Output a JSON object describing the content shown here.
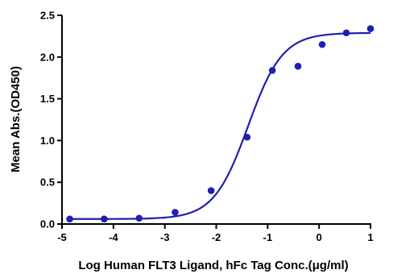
{
  "chart_data": {
    "type": "scatter",
    "xlabel": "Log Human FLT3 Ligand, hFc Tag Conc.(μg/ml)",
    "ylabel": "Mean Abs.(OD450)",
    "xlim": [
      -5,
      1
    ],
    "ylim": [
      0,
      2.5
    ],
    "xticks": [
      -5,
      -4,
      -3,
      -2,
      -1,
      0,
      1
    ],
    "yticks": [
      0.0,
      0.5,
      1.0,
      1.5,
      2.0,
      2.5
    ],
    "xtick_labels": [
      "-5",
      "-4",
      "-3",
      "-2",
      "-1",
      "0",
      "1"
    ],
    "ytick_labels": [
      "0.0",
      "0.5",
      "1.0",
      "1.5",
      "2.0",
      "2.5"
    ],
    "grid": false,
    "color": "#1f1fb4",
    "series": [
      {
        "x": [
          -4.85,
          -4.18,
          -3.5,
          -2.8,
          -2.1,
          -1.4,
          -0.91,
          -0.41,
          0.06,
          0.53,
          1.0
        ],
        "y": [
          0.06,
          0.06,
          0.07,
          0.14,
          0.4,
          1.04,
          1.84,
          1.89,
          2.15,
          2.29,
          2.34
        ]
      }
    ],
    "fit": {
      "model": "4PL",
      "bottom": 0.06,
      "top": 2.29,
      "logEC50": -1.38,
      "hill": 1.3
    }
  }
}
